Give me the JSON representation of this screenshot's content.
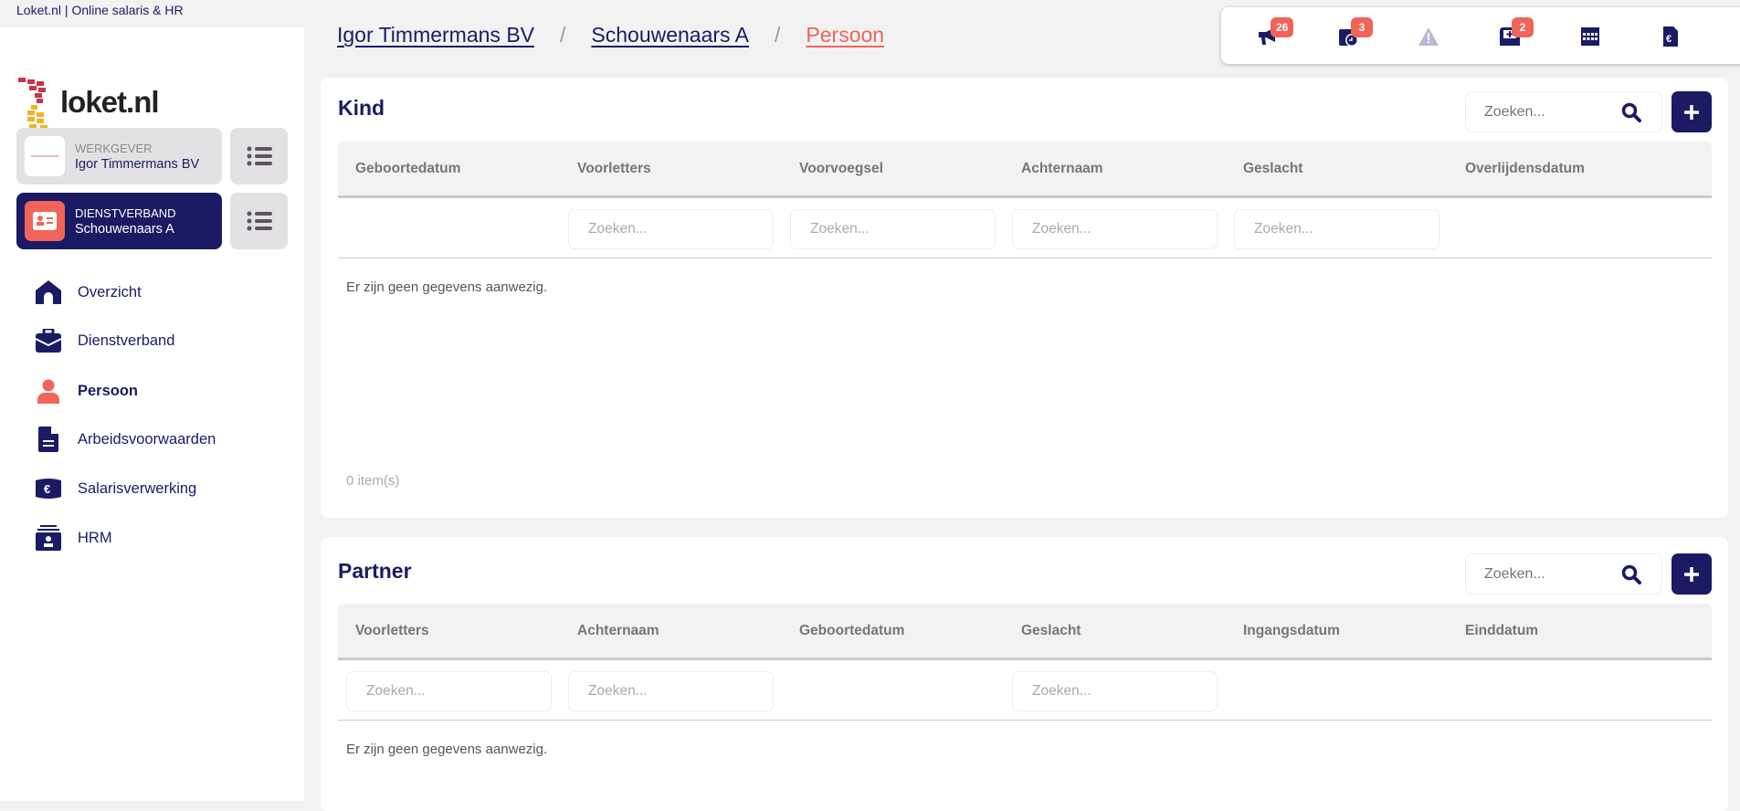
{
  "window_title": "Loket.nl | Online salaris & HR",
  "logo_text": "loket.nl",
  "sidebar": {
    "werkgever": {
      "label": "WERKGEVER",
      "name": "Igor Timmermans BV"
    },
    "dienstverband": {
      "label": "DIENSTVERBAND",
      "name": "Schouwenaars A"
    },
    "items": [
      {
        "label": "Overzicht",
        "icon": "home-icon"
      },
      {
        "label": "Dienstverband",
        "icon": "briefcase-icon"
      },
      {
        "label": "Persoon",
        "icon": "user-icon",
        "active": true
      },
      {
        "label": "Arbeidsvoorwaarden",
        "icon": "file-icon"
      },
      {
        "label": "Salarisverwerking",
        "icon": "euro-bill-icon"
      },
      {
        "label": "HRM",
        "icon": "id-card-icon"
      }
    ]
  },
  "breadcrumb": [
    "Igor Timmermans BV",
    "Schouwenaars A",
    "Persoon"
  ],
  "breadcrumb_separator": "/",
  "toolbar": {
    "announcements": "26",
    "tasks": "3",
    "inbox": "2"
  },
  "colors": {
    "navy": "#1b1b64",
    "coral": "#f0645a",
    "background": "#f2f2f2"
  },
  "kind": {
    "title": "Kind",
    "search_placeholder": "Zoeken...",
    "columns": [
      "Geboortedatum",
      "Voorletters",
      "Voorvoegsel",
      "Achternaam",
      "Geslacht",
      "Overlijdensdatum"
    ],
    "filter_placeholder": "Zoeken...",
    "empty": "Er zijn geen gegevens aanwezig.",
    "count": "0 item(s)"
  },
  "partner": {
    "title": "Partner",
    "search_placeholder": "Zoeken...",
    "columns": [
      "Voorletters",
      "Achternaam",
      "Geboortedatum",
      "Geslacht",
      "Ingangsdatum",
      "Einddatum"
    ],
    "filter_placeholder": "Zoeken...",
    "empty": "Er zijn geen gegevens aanwezig."
  }
}
